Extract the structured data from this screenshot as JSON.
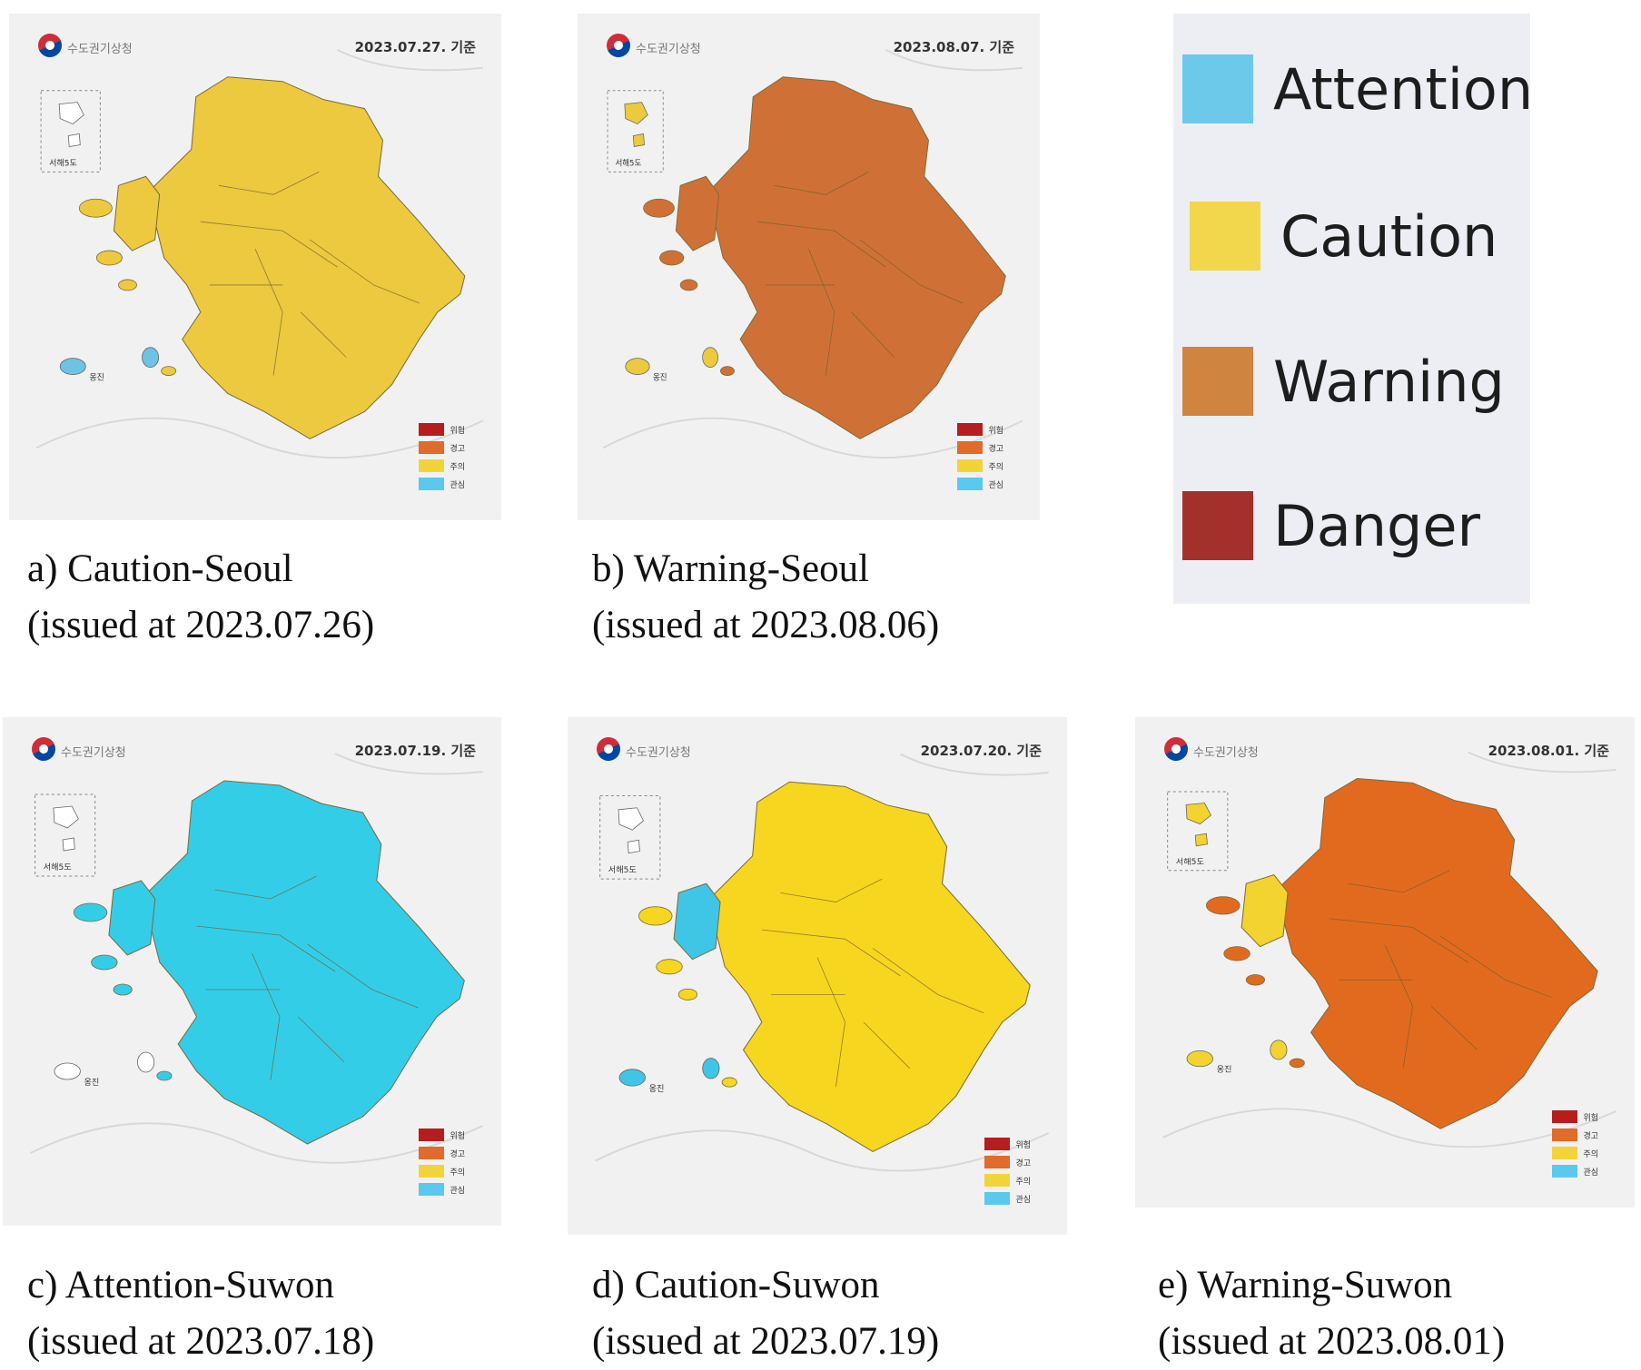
{
  "legend": {
    "items": [
      {
        "label": "Attention",
        "color": "#6cc9ea"
      },
      {
        "label": "Caution",
        "color": "#f2d74c"
      },
      {
        "label": "Warning",
        "color": "#cf8440"
      },
      {
        "label": "Danger",
        "color": "#a3302b"
      }
    ]
  },
  "map_key_colors": [
    "#b41e1e",
    "#e06b2a",
    "#f3d33a",
    "#5bc8ee"
  ],
  "panels": [
    {
      "id": "a",
      "agency": "수도권기상청",
      "date": "2023.07.27. 기준",
      "fill": "#ecc93e",
      "island_fill": "#6cc3e3",
      "caption_line1": "a) Caution-Seoul",
      "caption_line2": "(issued at 2023.07.26)"
    },
    {
      "id": "b",
      "agency": "수도권기상청",
      "date": "2023.08.07. 기준",
      "fill": "#cf7136",
      "island_fill": "#ecc93e",
      "caption_line1": "b) Warning-Seoul",
      "caption_line2": "(issued at 2023.08.06)"
    },
    {
      "id": "c",
      "agency": "수도권기상청",
      "date": "2023.07.19. 기준",
      "fill": "#34cde8",
      "island_fill": "#ffffff",
      "caption_line1": "c) Attention-Suwon",
      "caption_line2": "(issued at 2023.07.18)"
    },
    {
      "id": "d",
      "agency": "수도권기상청",
      "date": "2023.07.20. 기준",
      "fill": "#f7d61f",
      "island_fill": "#3fc6e6",
      "caption_line1": "d) Caution-Suwon",
      "caption_line2": "(issued at 2023.07.19)"
    },
    {
      "id": "e",
      "agency": "수도권기상청",
      "date": "2023.08.01. 기준",
      "fill": "#e26a1e",
      "island_fill": "#f2d330",
      "caption_line1": "e) Warning-Suwon",
      "caption_line2": "(issued at 2023.08.01)"
    }
  ],
  "map_key_labels": [
    "위험",
    "경고",
    "주의",
    "관심"
  ],
  "inset_label": "서해5도",
  "ongjin_label": "옹진"
}
